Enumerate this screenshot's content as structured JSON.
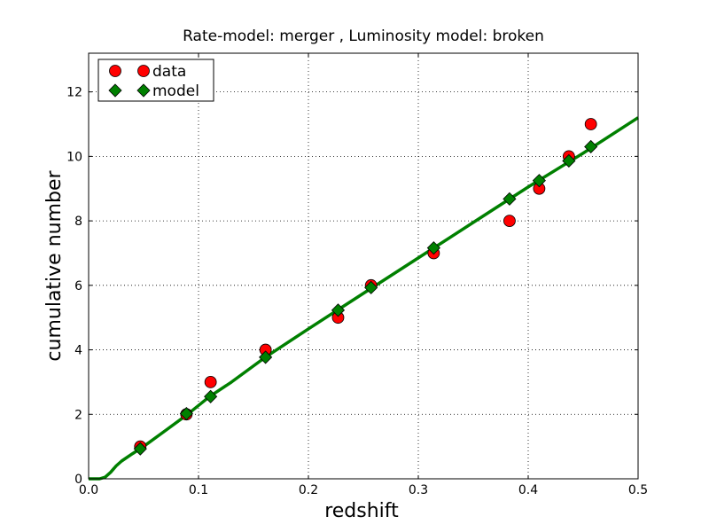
{
  "chart_data": {
    "type": "scatter",
    "title": "Rate-model: merger , Luminosity model: broken",
    "xlabel": "redshift",
    "ylabel": "cumulative number",
    "xlim": [
      0.0,
      0.5
    ],
    "ylim": [
      0,
      13.2
    ],
    "xticks": [
      0.0,
      0.1,
      0.2,
      0.3,
      0.4,
      0.5
    ],
    "xtick_labels": [
      "0.0",
      "0.1",
      "0.2",
      "0.3",
      "0.4",
      "0.5"
    ],
    "yticks": [
      0,
      2,
      4,
      6,
      8,
      10,
      12
    ],
    "ytick_labels": [
      "0",
      "2",
      "4",
      "6",
      "8",
      "10",
      "12"
    ],
    "grid": true,
    "legend_position": "top-left",
    "legend": [
      {
        "label": "data",
        "marker": "circle",
        "color": "#ff0000"
      },
      {
        "label": "model",
        "marker": "diamond",
        "color": "#008000"
      }
    ],
    "series": [
      {
        "name": "data",
        "kind": "points",
        "marker": "circle",
        "color": "#ff0000",
        "x": [
          0.047,
          0.089,
          0.111,
          0.161,
          0.227,
          0.257,
          0.314,
          0.383,
          0.41,
          0.437,
          0.457
        ],
        "y": [
          1,
          2,
          3,
          4,
          5,
          6,
          7,
          8,
          9,
          10,
          11
        ]
      },
      {
        "name": "model",
        "kind": "points",
        "marker": "diamond",
        "color": "#008000",
        "x": [
          0.047,
          0.089,
          0.111,
          0.161,
          0.227,
          0.257,
          0.314,
          0.383,
          0.41,
          0.437,
          0.457
        ],
        "y": [
          0.93,
          2.02,
          2.55,
          3.77,
          5.23,
          5.93,
          7.16,
          8.68,
          9.25,
          9.86,
          10.3
        ]
      },
      {
        "kind": "line",
        "color": "#008000",
        "x": [
          0.0,
          0.01,
          0.015,
          0.02,
          0.025,
          0.03,
          0.04,
          0.05,
          0.07,
          0.09,
          0.11,
          0.13,
          0.16,
          0.2,
          0.25,
          0.3,
          0.35,
          0.4,
          0.45,
          0.5
        ],
        "y": [
          0.0,
          0.0,
          0.05,
          0.2,
          0.4,
          0.55,
          0.78,
          1.0,
          1.5,
          2.0,
          2.55,
          3.0,
          3.75,
          4.65,
          5.75,
          6.85,
          7.95,
          9.05,
          10.1,
          11.2
        ]
      }
    ]
  }
}
